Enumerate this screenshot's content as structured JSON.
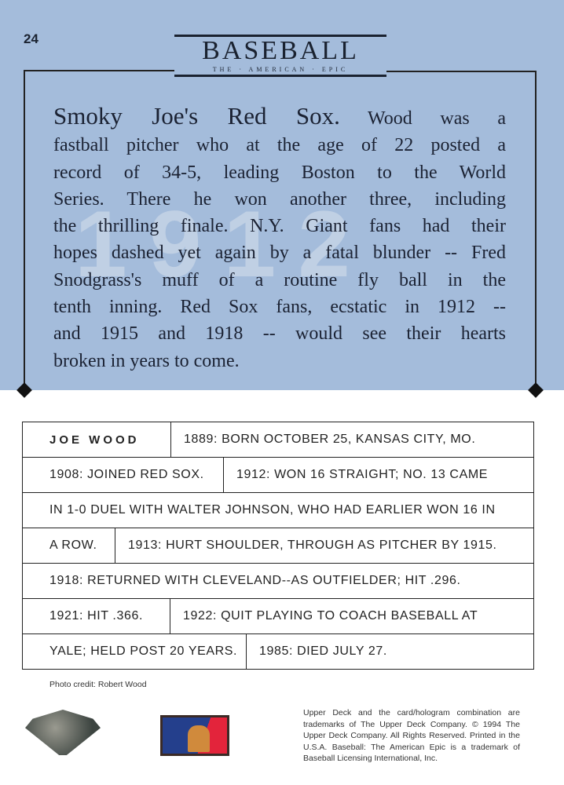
{
  "card_number": "24",
  "logo": {
    "title": "BASEBALL",
    "subtitle": "THE · AMERICAN · EPIC"
  },
  "watermark_year": "1912",
  "story": {
    "headline": "Smoky Joe's Red Sox.",
    "lines": [
      " Wood was a",
      "fastball pitcher who at the age of 22 posted a",
      "record of 34-5, leading Boston to the World",
      "Series. There he won another three, including",
      "the thrilling finale. N.Y. Giant fans had their",
      "hopes dashed yet again by a fatal blunder -- Fred",
      "Snodgrass's muff of a routine fly ball in the",
      "tenth inning. Red Sox fans, ecstatic in 1912 --",
      "and 1915 and 1918 -- would see their hearts",
      "broken in years to come."
    ]
  },
  "timeline": {
    "name": "JOE WOOD",
    "rows": [
      [
        "1889: BORN OCTOBER 25, KANSAS CITY, MO."
      ],
      [
        "1908: JOINED RED SOX.",
        "1912: WON 16 STRAIGHT; NO. 13 CAME"
      ],
      [
        "IN 1-0 DUEL WITH WALTER JOHNSON, WHO HAD EARLIER WON 16 IN"
      ],
      [
        "A ROW.",
        "1913: HURT SHOULDER, THROUGH AS PITCHER BY 1915."
      ],
      [
        "1918: RETURNED WITH CLEVELAND--AS OUTFIELDER; HIT .296."
      ],
      [
        "1921: HIT .366.",
        "1922: QUIT PLAYING TO COACH BASEBALL AT"
      ],
      [
        "YALE; HELD POST 20 YEARS.",
        "1985: DIED JULY 27."
      ]
    ]
  },
  "photo_credit": "Photo credit: Robert Wood",
  "legal": "Upper Deck and the card/hologram combination are trademarks of The Upper Deck Company. © 1994 The Upper Deck Company. All Rights Reserved. Printed in the U.S.A. Baseball: The American Epic is a trademark of Baseball Licensing International, Inc.",
  "colors": {
    "background_blue": "#a4bcdb",
    "text": "#1b2233"
  }
}
